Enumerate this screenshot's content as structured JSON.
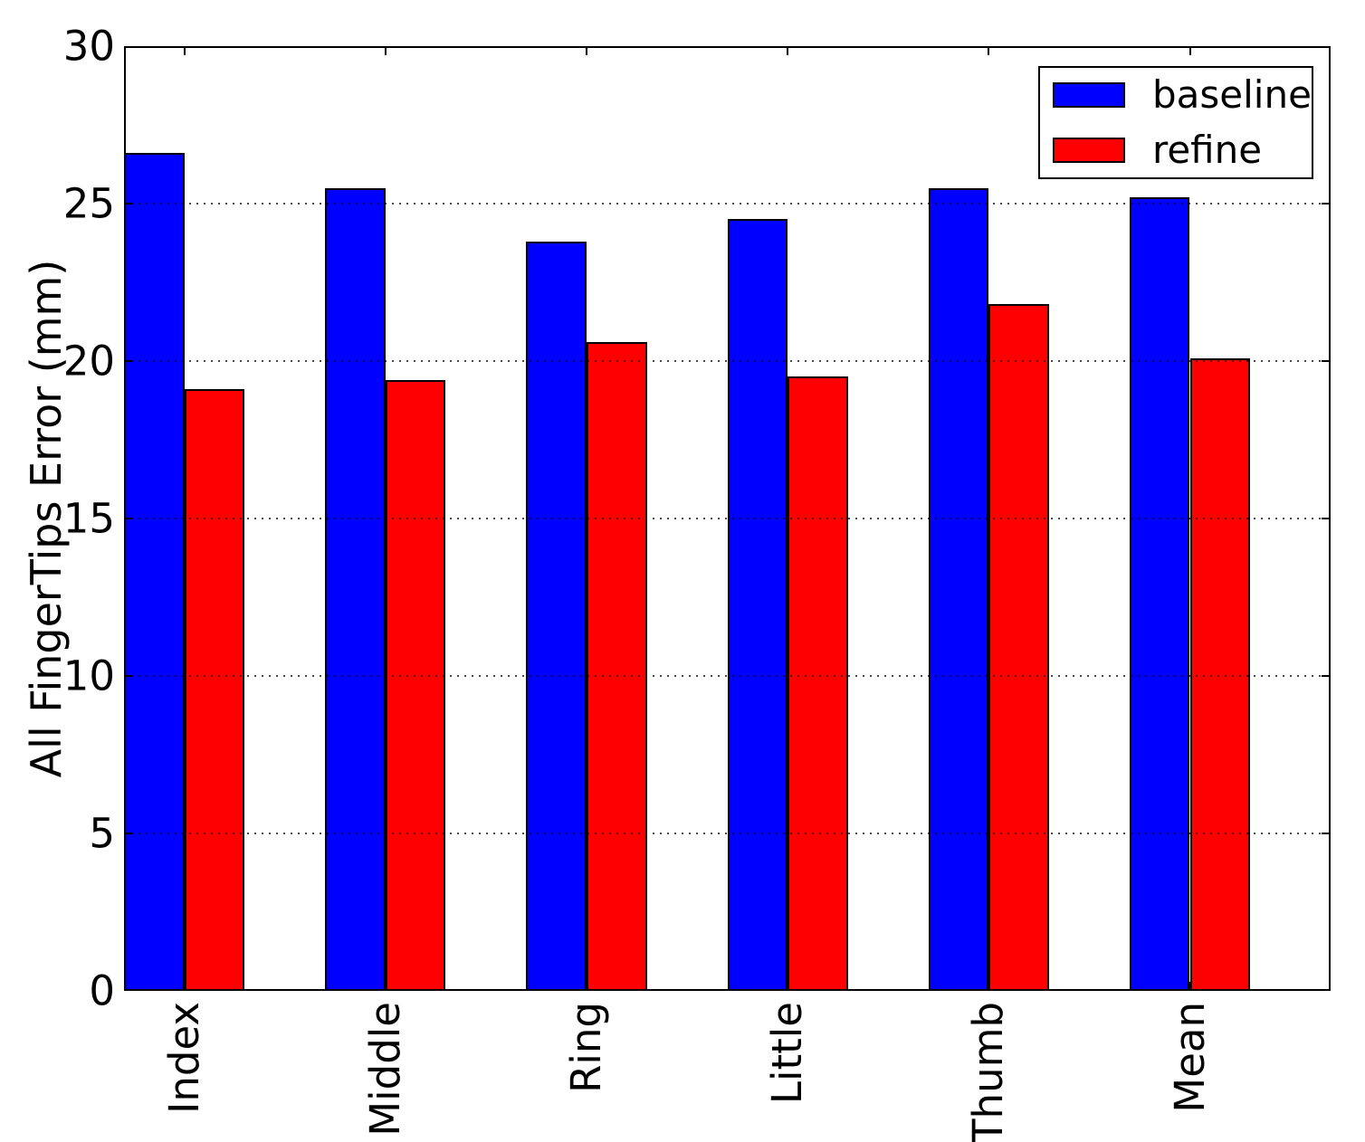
{
  "chart_data": {
    "type": "bar",
    "title": "",
    "xlabel": "",
    "ylabel": "All FingerTips Error (mm)",
    "categories": [
      "Index",
      "Middle",
      "Ring",
      "Little",
      "Thumb",
      "Mean"
    ],
    "series": [
      {
        "name": "baseline",
        "color": "#0000ff",
        "values": [
          26.6,
          25.5,
          23.8,
          24.5,
          25.5,
          25.2
        ]
      },
      {
        "name": "refine",
        "color": "#ff0000",
        "values": [
          19.1,
          19.4,
          20.6,
          19.5,
          21.8,
          20.1
        ]
      }
    ],
    "ylim": [
      0,
      30
    ],
    "yticks": [
      0,
      5,
      10,
      15,
      20,
      25,
      30
    ],
    "grid": {
      "axis": "y",
      "style": "dotted",
      "color": "#000000",
      "at": [
        5,
        10,
        15,
        20,
        25
      ]
    },
    "legend": {
      "position": "upper right",
      "labels": [
        "baseline",
        "refine"
      ]
    },
    "bar_width_units": 0.3,
    "bar_edge_color": "#000000",
    "xtick_label_rotation_deg": 90
  }
}
